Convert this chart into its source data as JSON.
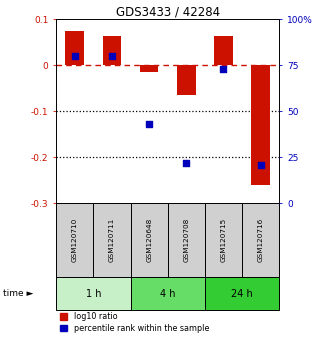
{
  "title": "GDS3433 / 42284",
  "samples": [
    "GSM120710",
    "GSM120711",
    "GSM120648",
    "GSM120708",
    "GSM120715",
    "GSM120716"
  ],
  "log10_ratio": [
    0.075,
    0.065,
    -0.015,
    -0.065,
    0.065,
    -0.26
  ],
  "percentile_rank": [
    80,
    80,
    43,
    22,
    73,
    21
  ],
  "groups": [
    {
      "label": "1 h",
      "start": 0,
      "end": 2,
      "color": "#c8f0c8"
    },
    {
      "label": "4 h",
      "start": 2,
      "end": 4,
      "color": "#66dd66"
    },
    {
      "label": "24 h",
      "start": 4,
      "end": 6,
      "color": "#33cc33"
    }
  ],
  "ylim_left": [
    -0.3,
    0.1
  ],
  "ylim_right": [
    0,
    100
  ],
  "yticks_left": [
    -0.3,
    -0.2,
    -0.1,
    0.0,
    0.1
  ],
  "yticks_right": [
    0,
    25,
    50,
    75,
    100
  ],
  "bar_color_red": "#cc1100",
  "dot_color_blue": "#0000bb",
  "dashed_line_color": "#cc1100",
  "bar_width": 0.5,
  "background_color": "#ffffff",
  "label_box_color": "#d0d0d0",
  "title_fontsize": 8.5
}
